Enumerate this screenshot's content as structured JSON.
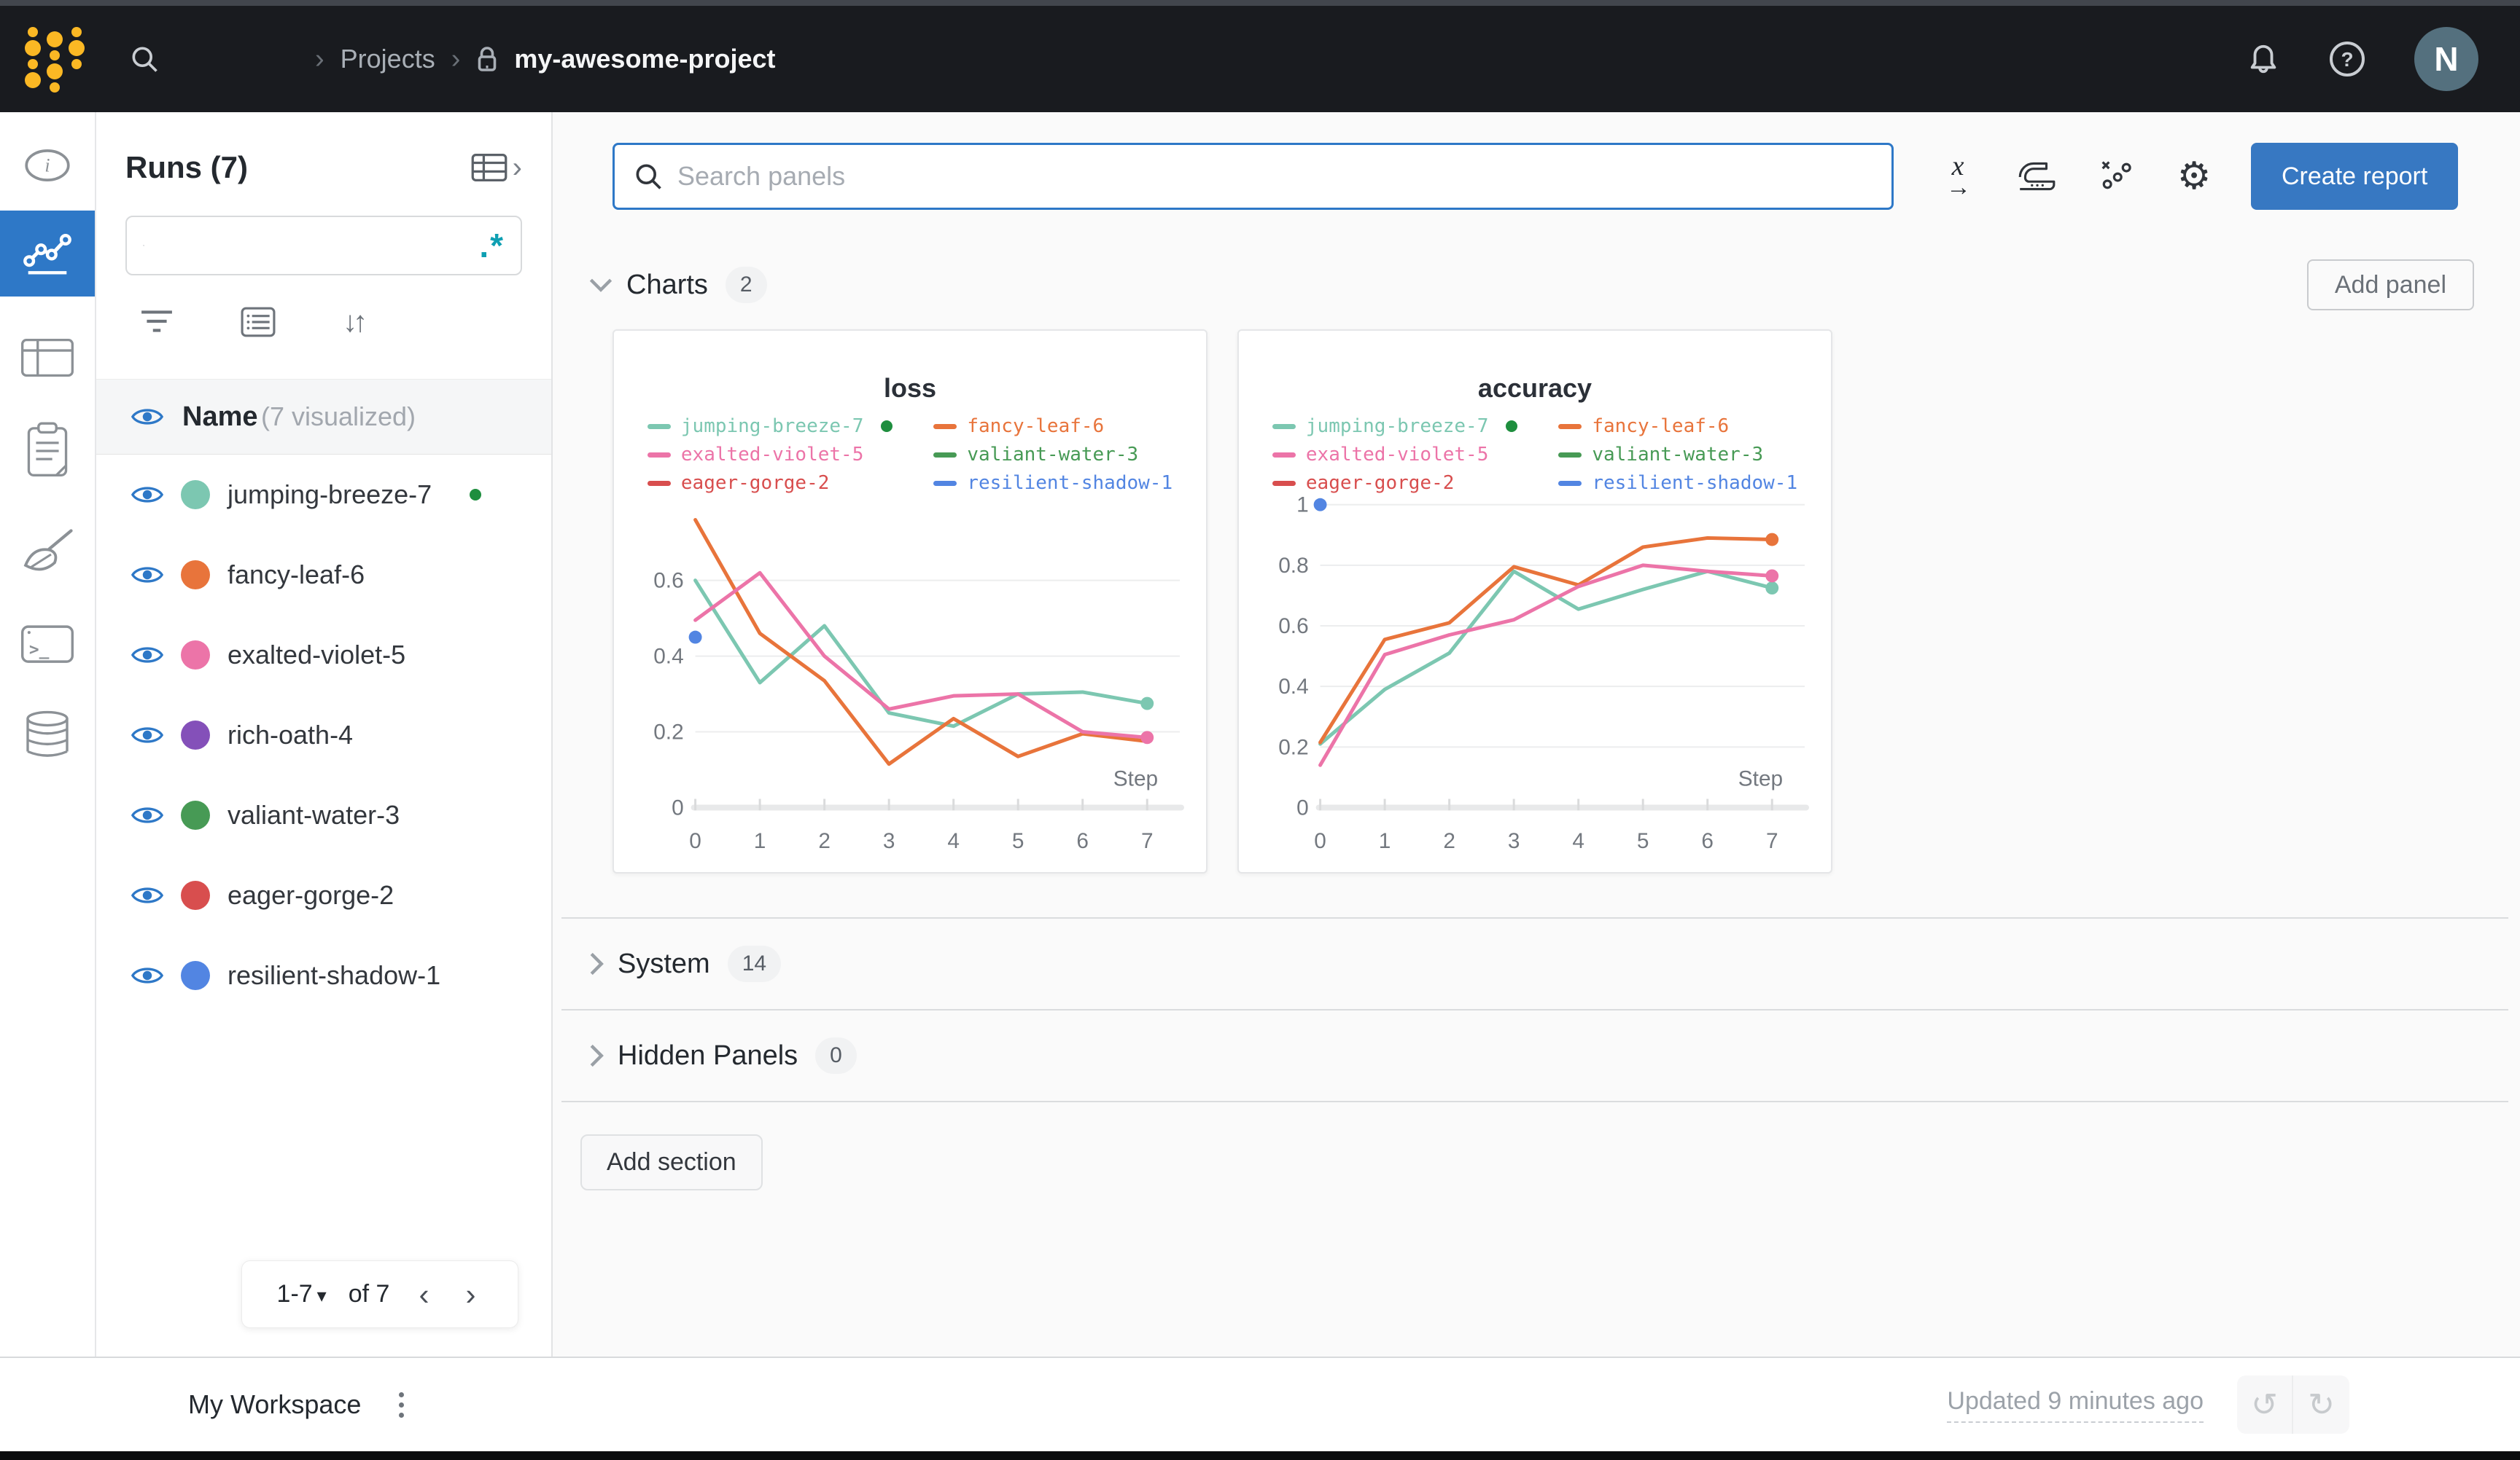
{
  "accent": "#2E78C7",
  "topbar": {
    "breadcrumb": {
      "separator": "›",
      "projects_label": "Projects",
      "project_name": "my-awesome-project"
    },
    "avatar_initial": "N"
  },
  "runs_panel": {
    "title": "Runs (7)",
    "header_expand_glyph": "›",
    "search": {
      "value": "",
      "regex_glyph": ".*"
    },
    "sort_glyph": "↓↑",
    "header": {
      "name_label": "Name",
      "visualized_label": "(7 visualized)"
    },
    "runs": [
      {
        "name": "jumping-breeze-7",
        "color": "#7CC7B1",
        "live": true
      },
      {
        "name": "fancy-leaf-6",
        "color": "#E8743B",
        "live": false
      },
      {
        "name": "exalted-violet-5",
        "color": "#EC74A8",
        "live": false
      },
      {
        "name": "rich-oath-4",
        "color": "#8450B9",
        "live": false
      },
      {
        "name": "valiant-water-3",
        "color": "#479A55",
        "live": false
      },
      {
        "name": "eager-gorge-2",
        "color": "#D84E4E",
        "live": false
      },
      {
        "name": "resilient-shadow-1",
        "color": "#5285E2",
        "live": false
      }
    ],
    "pagination": {
      "range_label": "1-7",
      "dropdown_glyph": "▾",
      "of_label": "of 7",
      "prev_glyph": "‹",
      "next_glyph": "›"
    }
  },
  "main": {
    "panel_search_placeholder": "Search panels",
    "create_report_label": "Create report",
    "add_panel_label": "Add panel",
    "add_section_label": "Add section",
    "sections": {
      "charts": {
        "label": "Charts",
        "count": "2"
      },
      "system": {
        "label": "System",
        "count": "14"
      },
      "hidden": {
        "label": "Hidden Panels",
        "count": "0"
      }
    },
    "icons": {
      "gear": "⚙",
      "xaxis_x": "x",
      "xaxis_arrow": "→"
    }
  },
  "footer": {
    "workspace_label": "My Workspace",
    "updated_label": "Updated 9 minutes ago",
    "undo_glyph": "↺",
    "redo_glyph": "↻"
  },
  "chart_data": [
    {
      "type": "line",
      "title": "loss",
      "xlabel": "Step",
      "x": [
        0,
        1,
        2,
        3,
        4,
        5,
        6,
        7
      ],
      "ylim": [
        0,
        0.8
      ],
      "yticks": [
        0,
        0.2,
        0.4,
        0.6
      ],
      "grid": true,
      "legend_position": "top",
      "series": [
        {
          "name": "jumping-breeze-7",
          "color": "#7CC7B1",
          "live": true,
          "end_dot": true,
          "values": [
            0.6,
            0.33,
            0.48,
            0.25,
            0.215,
            0.3,
            0.305,
            0.275
          ]
        },
        {
          "name": "fancy-leaf-6",
          "color": "#E8743B",
          "values": [
            0.76,
            0.46,
            0.335,
            0.115,
            0.235,
            0.135,
            0.195,
            0.175
          ]
        },
        {
          "name": "exalted-violet-5",
          "color": "#EC74A8",
          "end_dot": true,
          "values": [
            0.495,
            0.62,
            0.4,
            0.26,
            0.295,
            0.3,
            0.2,
            0.185
          ]
        },
        {
          "name": "valiant-water-3",
          "color": "#479A55"
        },
        {
          "name": "eager-gorge-2",
          "color": "#D84E4E"
        },
        {
          "name": "resilient-shadow-1",
          "color": "#5285E2",
          "points": [
            [
              0,
              0.45
            ]
          ]
        }
      ]
    },
    {
      "type": "line",
      "title": "accuracy",
      "xlabel": "Step",
      "x": [
        0,
        1,
        2,
        3,
        4,
        5,
        6,
        7
      ],
      "ylim": [
        0,
        1.0
      ],
      "yticks": [
        0,
        0.2,
        0.4,
        0.6,
        0.8,
        1
      ],
      "grid": true,
      "legend_position": "top",
      "series": [
        {
          "name": "jumping-breeze-7",
          "color": "#7CC7B1",
          "live": true,
          "end_dot": true,
          "values": [
            0.21,
            0.39,
            0.51,
            0.78,
            0.655,
            0.72,
            0.78,
            0.725
          ]
        },
        {
          "name": "fancy-leaf-6",
          "color": "#E8743B",
          "end_dot": true,
          "values": [
            0.215,
            0.555,
            0.61,
            0.795,
            0.735,
            0.86,
            0.89,
            0.885
          ]
        },
        {
          "name": "exalted-violet-5",
          "color": "#EC74A8",
          "end_dot": true,
          "values": [
            0.14,
            0.505,
            0.57,
            0.62,
            0.73,
            0.8,
            0.78,
            0.765
          ]
        },
        {
          "name": "valiant-water-3",
          "color": "#479A55"
        },
        {
          "name": "eager-gorge-2",
          "color": "#D84E4E"
        },
        {
          "name": "resilient-shadow-1",
          "color": "#5285E2",
          "points": [
            [
              0,
              1.0
            ]
          ]
        }
      ]
    }
  ]
}
